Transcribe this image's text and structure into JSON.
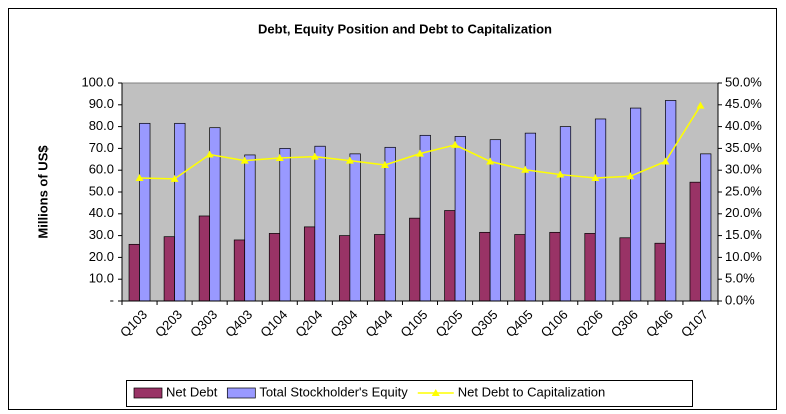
{
  "chart_data": {
    "type": "bar-line",
    "title": "Debt, Equity Position and Debt to Capitalization",
    "y_label": "Millions of US$",
    "categories": [
      "Q103",
      "Q203",
      "Q303",
      "Q403",
      "Q104",
      "Q204",
      "Q304",
      "Q404",
      "Q105",
      "Q205",
      "Q305",
      "Q405",
      "Q106",
      "Q206",
      "Q306",
      "Q406",
      "Q107"
    ],
    "series": [
      {
        "name": "Net Debt",
        "color": "#993366",
        "type": "bar",
        "values": [
          26,
          29.5,
          39,
          28,
          31,
          34,
          30,
          30.5,
          38,
          41.5,
          31.5,
          30.5,
          31.5,
          31,
          29,
          26.5,
          54.5
        ]
      },
      {
        "name": "Total Stockholder's Equity",
        "color": "#9999ff",
        "type": "bar",
        "values": [
          81.5,
          81.5,
          79.5,
          67,
          70,
          71,
          67.5,
          70.5,
          76,
          75.5,
          74,
          77,
          80,
          83.5,
          88.5,
          92,
          67.5
        ]
      },
      {
        "name": "Net Debt to Capitalization",
        "color": "#ffff00",
        "type": "line",
        "axis": "y2",
        "values": [
          28.2,
          28,
          33.6,
          32.2,
          32.8,
          33.1,
          32.2,
          31.2,
          33.8,
          35.8,
          32,
          30.1,
          29,
          28.2,
          28.6,
          32,
          44.8
        ]
      }
    ],
    "ylim": [
      0,
      100
    ],
    "yticks": [
      {
        "value": 0,
        "label": "-"
      },
      {
        "value": 10,
        "label": "10.0"
      },
      {
        "value": 20,
        "label": "20.0"
      },
      {
        "value": 30,
        "label": "30.0"
      },
      {
        "value": 40,
        "label": "40.0"
      },
      {
        "value": 50,
        "label": "50.0"
      },
      {
        "value": 60,
        "label": "60.0"
      },
      {
        "value": 70,
        "label": "70.0"
      },
      {
        "value": 80,
        "label": "80.0"
      },
      {
        "value": 90,
        "label": "90.0"
      },
      {
        "value": 100,
        "label": "100.0"
      }
    ],
    "y2lim": [
      0,
      50
    ],
    "y2ticks": [
      {
        "value": 0,
        "label": "0.0%"
      },
      {
        "value": 5,
        "label": "5.0%"
      },
      {
        "value": 10,
        "label": "10.0%"
      },
      {
        "value": 15,
        "label": "15.0%"
      },
      {
        "value": 20,
        "label": "20.0%"
      },
      {
        "value": 25,
        "label": "25.0%"
      },
      {
        "value": 30,
        "label": "30.0%"
      },
      {
        "value": 35,
        "label": "35.0%"
      },
      {
        "value": 40,
        "label": "40.0%"
      },
      {
        "value": 45,
        "label": "45.0%"
      },
      {
        "value": 50,
        "label": "50.0%"
      }
    ],
    "plot_background": "#c0c0c0",
    "legend": "bottom"
  }
}
